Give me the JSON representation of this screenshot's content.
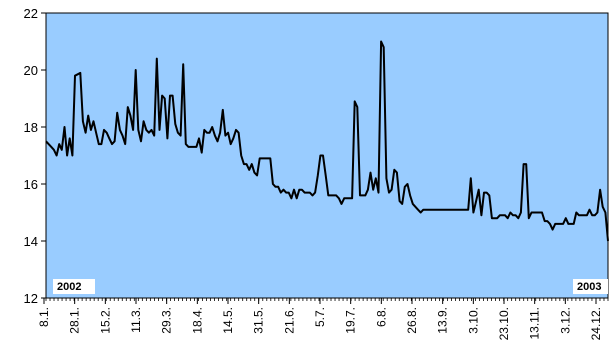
{
  "chart_data": {
    "type": "line",
    "title": "",
    "xlabel": "",
    "ylabel": "",
    "ylim": [
      12,
      22
    ],
    "yticks": [
      12,
      14,
      16,
      18,
      20,
      22
    ],
    "grid": false,
    "legend": "none",
    "colors": {
      "plot_bg": "#99ccff",
      "line": "#000000",
      "axis": "#000000",
      "year_box": "#ffffff"
    },
    "x_tick_labels": [
      "8.1.",
      "28.1.",
      "15.2.",
      "11.3.",
      "29.3.",
      "18.4.",
      "14.5.",
      "31.5.",
      "21.6.",
      "5.7.",
      "19.7.",
      "6.8.",
      "26.8.",
      "13.9.",
      "3.10.",
      "23.10.",
      "13.11.",
      "3.12.",
      "24.12."
    ],
    "year_labels": {
      "start": "2002",
      "end": "2003"
    },
    "series": [
      {
        "points": [
          [
            0,
            17.5
          ],
          [
            1,
            17.4
          ],
          [
            2,
            17.3
          ],
          [
            3,
            17.2
          ],
          [
            4,
            17.0
          ],
          [
            5,
            17.4
          ],
          [
            6,
            17.2
          ],
          [
            7,
            18.0
          ],
          [
            8,
            17.0
          ],
          [
            9,
            17.6
          ],
          [
            10,
            17.0
          ],
          [
            11,
            19.8
          ],
          [
            12,
            19.85
          ],
          [
            13,
            19.9
          ],
          [
            14,
            18.2
          ],
          [
            15,
            17.8
          ],
          [
            16,
            18.4
          ],
          [
            17,
            17.9
          ],
          [
            18,
            18.2
          ],
          [
            19,
            17.8
          ],
          [
            20,
            17.4
          ],
          [
            21,
            17.4
          ],
          [
            22,
            17.9
          ],
          [
            23,
            17.8
          ],
          [
            24,
            17.6
          ],
          [
            25,
            17.4
          ],
          [
            26,
            17.5
          ],
          [
            27,
            18.5
          ],
          [
            28,
            17.9
          ],
          [
            29,
            17.7
          ],
          [
            30,
            17.4
          ],
          [
            31,
            18.7
          ],
          [
            32,
            18.4
          ],
          [
            33,
            17.9
          ],
          [
            34,
            20.0
          ],
          [
            35,
            17.9
          ],
          [
            36,
            17.5
          ],
          [
            37,
            18.2
          ],
          [
            38,
            17.9
          ],
          [
            39,
            17.8
          ],
          [
            40,
            17.9
          ],
          [
            41,
            17.7
          ],
          [
            42,
            20.4
          ],
          [
            43,
            17.9
          ],
          [
            44,
            19.1
          ],
          [
            45,
            19.0
          ],
          [
            46,
            17.6
          ],
          [
            47,
            19.1
          ],
          [
            48,
            19.1
          ],
          [
            49,
            18.1
          ],
          [
            50,
            17.8
          ],
          [
            51,
            17.7
          ],
          [
            52,
            20.2
          ],
          [
            53,
            17.4
          ],
          [
            54,
            17.3
          ],
          [
            55,
            17.3
          ],
          [
            56,
            17.3
          ],
          [
            57,
            17.3
          ],
          [
            58,
            17.6
          ],
          [
            59,
            17.1
          ],
          [
            60,
            17.9
          ],
          [
            61,
            17.8
          ],
          [
            62,
            17.8
          ],
          [
            63,
            18.0
          ],
          [
            64,
            17.7
          ],
          [
            65,
            17.5
          ],
          [
            66,
            17.8
          ],
          [
            67,
            18.6
          ],
          [
            68,
            17.7
          ],
          [
            69,
            17.8
          ],
          [
            70,
            17.4
          ],
          [
            71,
            17.6
          ],
          [
            72,
            17.9
          ],
          [
            73,
            17.8
          ],
          [
            74,
            17.0
          ],
          [
            75,
            16.7
          ],
          [
            76,
            16.7
          ],
          [
            77,
            16.5
          ],
          [
            78,
            16.7
          ],
          [
            79,
            16.4
          ],
          [
            80,
            16.3
          ],
          [
            81,
            16.9
          ],
          [
            82,
            16.9
          ],
          [
            83,
            16.9
          ],
          [
            84,
            16.9
          ],
          [
            85,
            16.9
          ],
          [
            86,
            16.0
          ],
          [
            87,
            15.9
          ],
          [
            88,
            15.9
          ],
          [
            89,
            15.7
          ],
          [
            90,
            15.8
          ],
          [
            91,
            15.7
          ],
          [
            92,
            15.7
          ],
          [
            93,
            15.5
          ],
          [
            94,
            15.8
          ],
          [
            95,
            15.5
          ],
          [
            96,
            15.8
          ],
          [
            97,
            15.8
          ],
          [
            98,
            15.7
          ],
          [
            99,
            15.7
          ],
          [
            100,
            15.7
          ],
          [
            101,
            15.6
          ],
          [
            102,
            15.7
          ],
          [
            103,
            16.3
          ],
          [
            104,
            17.0
          ],
          [
            105,
            17.0
          ],
          [
            106,
            16.3
          ],
          [
            107,
            15.6
          ],
          [
            108,
            15.6
          ],
          [
            109,
            15.6
          ],
          [
            110,
            15.6
          ],
          [
            111,
            15.5
          ],
          [
            112,
            15.3
          ],
          [
            113,
            15.5
          ],
          [
            114,
            15.5
          ],
          [
            115,
            15.5
          ],
          [
            116,
            15.5
          ],
          [
            117,
            18.9
          ],
          [
            118,
            18.7
          ],
          [
            119,
            15.6
          ],
          [
            120,
            15.6
          ],
          [
            121,
            15.6
          ],
          [
            122,
            15.8
          ],
          [
            123,
            16.4
          ],
          [
            124,
            15.8
          ],
          [
            125,
            16.2
          ],
          [
            126,
            15.7
          ],
          [
            127,
            21.0
          ],
          [
            128,
            20.8
          ],
          [
            129,
            16.2
          ],
          [
            130,
            15.7
          ],
          [
            131,
            15.8
          ],
          [
            132,
            16.5
          ],
          [
            133,
            16.4
          ],
          [
            134,
            15.4
          ],
          [
            135,
            15.3
          ],
          [
            136,
            15.9
          ],
          [
            137,
            16.0
          ],
          [
            138,
            15.6
          ],
          [
            139,
            15.3
          ],
          [
            140,
            15.2
          ],
          [
            141,
            15.1
          ],
          [
            142,
            15.0
          ],
          [
            143,
            15.1
          ],
          [
            144,
            15.1
          ],
          [
            160,
            15.1
          ],
          [
            161,
            16.2
          ],
          [
            162,
            15.0
          ],
          [
            163,
            15.4
          ],
          [
            164,
            15.8
          ],
          [
            165,
            14.9
          ],
          [
            166,
            15.7
          ],
          [
            167,
            15.7
          ],
          [
            168,
            15.6
          ],
          [
            169,
            14.8
          ],
          [
            170,
            14.8
          ],
          [
            171,
            14.8
          ],
          [
            172,
            14.9
          ],
          [
            173,
            14.9
          ],
          [
            174,
            14.9
          ],
          [
            175,
            14.8
          ],
          [
            176,
            15.0
          ],
          [
            177,
            14.9
          ],
          [
            178,
            14.9
          ],
          [
            179,
            14.8
          ],
          [
            180,
            15.0
          ],
          [
            181,
            16.7
          ],
          [
            182,
            16.7
          ],
          [
            183,
            14.8
          ],
          [
            184,
            15.0
          ],
          [
            185,
            15.0
          ],
          [
            186,
            15.0
          ],
          [
            187,
            15.0
          ],
          [
            188,
            15.0
          ],
          [
            189,
            14.7
          ],
          [
            190,
            14.7
          ],
          [
            191,
            14.6
          ],
          [
            192,
            14.4
          ],
          [
            193,
            14.6
          ],
          [
            194,
            14.6
          ],
          [
            195,
            14.6
          ],
          [
            196,
            14.6
          ],
          [
            197,
            14.8
          ],
          [
            198,
            14.6
          ],
          [
            199,
            14.6
          ],
          [
            200,
            14.6
          ],
          [
            201,
            15.0
          ],
          [
            202,
            14.9
          ],
          [
            203,
            14.9
          ],
          [
            204,
            14.9
          ],
          [
            205,
            14.9
          ],
          [
            206,
            15.1
          ],
          [
            207,
            14.9
          ],
          [
            208,
            14.9
          ],
          [
            209,
            15.0
          ],
          [
            210,
            15.8
          ],
          [
            211,
            15.2
          ],
          [
            212,
            15.0
          ],
          [
            213,
            14.0
          ]
        ]
      }
    ]
  }
}
